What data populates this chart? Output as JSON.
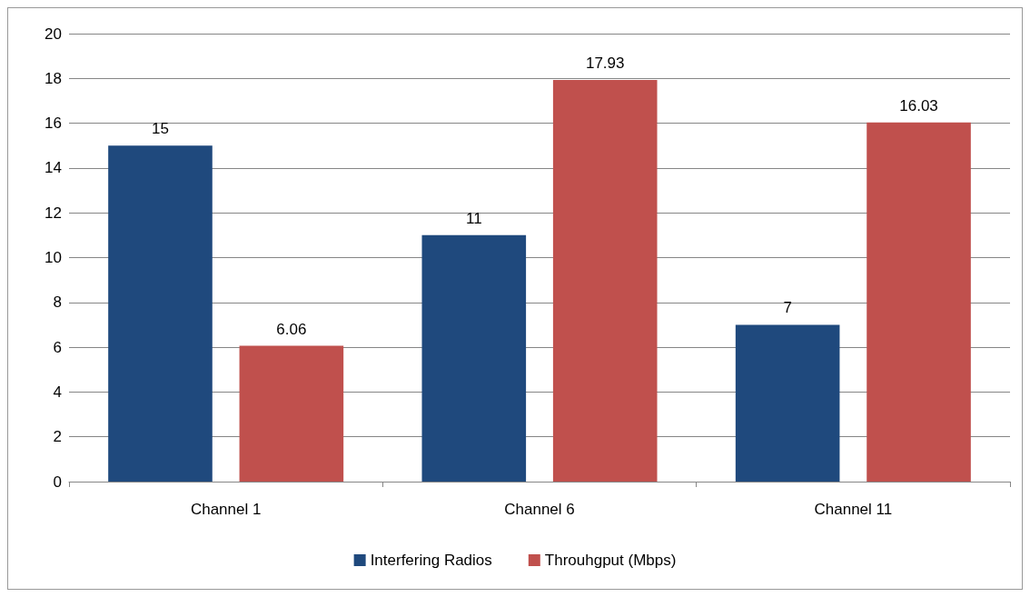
{
  "chart_data": {
    "type": "bar",
    "categories": [
      "Channel 1",
      "Channel 6",
      "Channel 11"
    ],
    "series": [
      {
        "name": "Interfering Radios",
        "color": "#1f497d",
        "values": [
          15,
          11,
          7
        ]
      },
      {
        "name": "Throuhgput (Mbps)",
        "color": "#c0504d",
        "values": [
          6.06,
          17.93,
          16.03
        ]
      }
    ],
    "ylim": [
      0,
      20
    ],
    "yticks": [
      0,
      2,
      4,
      6,
      8,
      10,
      12,
      14,
      16,
      18,
      20
    ],
    "grid": "y",
    "legend": "bottom",
    "data_labels": true
  }
}
